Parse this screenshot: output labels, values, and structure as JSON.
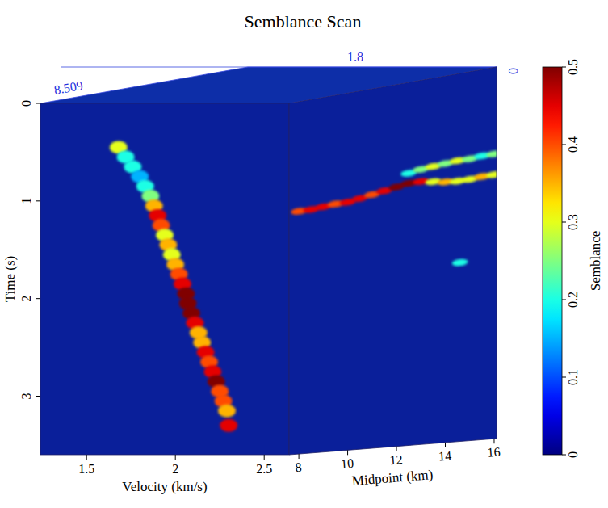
{
  "chart_data": {
    "type": "semblance_cube",
    "title": "Semblance Scan",
    "y_label": "Time (s)",
    "ylim": [
      0,
      3.6
    ],
    "yticks": [
      0,
      1,
      2,
      3
    ],
    "x_label": "Velocity (km/s)",
    "xlim": [
      1.24,
      2.64
    ],
    "xticks": [
      1.5,
      2,
      2.5
    ],
    "midpoint_label": "Midpoint (km)",
    "midpoint_lim": [
      7.6,
      16.1
    ],
    "midpoint_ticks": [
      8,
      10,
      12,
      14,
      16
    ],
    "colorbar_label": "Semblance",
    "colorbar_lim": [
      0,
      0.5
    ],
    "colorbar_ticks": [
      0,
      0.1,
      0.2,
      0.3,
      0.4,
      0.5
    ],
    "slice_labels": [
      "8.509",
      "1.8",
      "0"
    ],
    "velocity_panel": {
      "time": [
        0.45,
        0.55,
        0.65,
        0.75,
        0.85,
        0.95,
        1.05,
        1.15,
        1.25,
        1.35,
        1.45,
        1.55,
        1.65,
        1.75,
        1.85,
        1.95,
        2.05,
        2.15,
        2.25,
        2.35,
        2.45,
        2.55,
        2.65,
        2.75,
        2.85,
        2.95,
        3.05,
        3.15,
        3.3
      ],
      "velocity": [
        1.68,
        1.72,
        1.76,
        1.8,
        1.83,
        1.86,
        1.88,
        1.9,
        1.92,
        1.94,
        1.96,
        1.98,
        2.0,
        2.02,
        2.04,
        2.06,
        2.07,
        2.09,
        2.11,
        2.13,
        2.15,
        2.17,
        2.19,
        2.21,
        2.23,
        2.25,
        2.27,
        2.29,
        2.3
      ],
      "semblance": [
        0.3,
        0.2,
        0.2,
        0.15,
        0.2,
        0.25,
        0.35,
        0.45,
        0.4,
        0.3,
        0.35,
        0.3,
        0.35,
        0.4,
        0.45,
        0.5,
        0.5,
        0.5,
        0.45,
        0.35,
        0.35,
        0.45,
        0.4,
        0.45,
        0.5,
        0.4,
        0.4,
        0.35,
        0.45
      ]
    },
    "midpoint_panel": {
      "time": [
        1.12,
        1.12,
        1.11,
        1.1,
        1.1,
        1.08,
        1.06,
        1.04,
        1.02,
        1.0,
        1.0,
        1.02,
        1.04,
        1.05,
        1.05,
        1.04,
        1.04,
        0.9,
        0.88,
        0.87,
        0.86,
        0.85,
        0.85,
        0.84,
        0.84,
        1.85
      ],
      "midpoint": [
        8,
        8.5,
        9,
        9.5,
        10,
        10.5,
        11,
        11.5,
        12,
        12.5,
        13,
        13.5,
        14,
        14.5,
        15,
        15.5,
        16,
        12.5,
        13,
        13.5,
        14,
        14.5,
        15,
        15.5,
        16,
        14.6
      ],
      "semblance": [
        0.4,
        0.45,
        0.45,
        0.4,
        0.45,
        0.45,
        0.4,
        0.45,
        0.5,
        0.5,
        0.45,
        0.3,
        0.35,
        0.3,
        0.3,
        0.35,
        0.3,
        0.2,
        0.25,
        0.3,
        0.25,
        0.3,
        0.25,
        0.2,
        0.25,
        0.2
      ]
    }
  }
}
